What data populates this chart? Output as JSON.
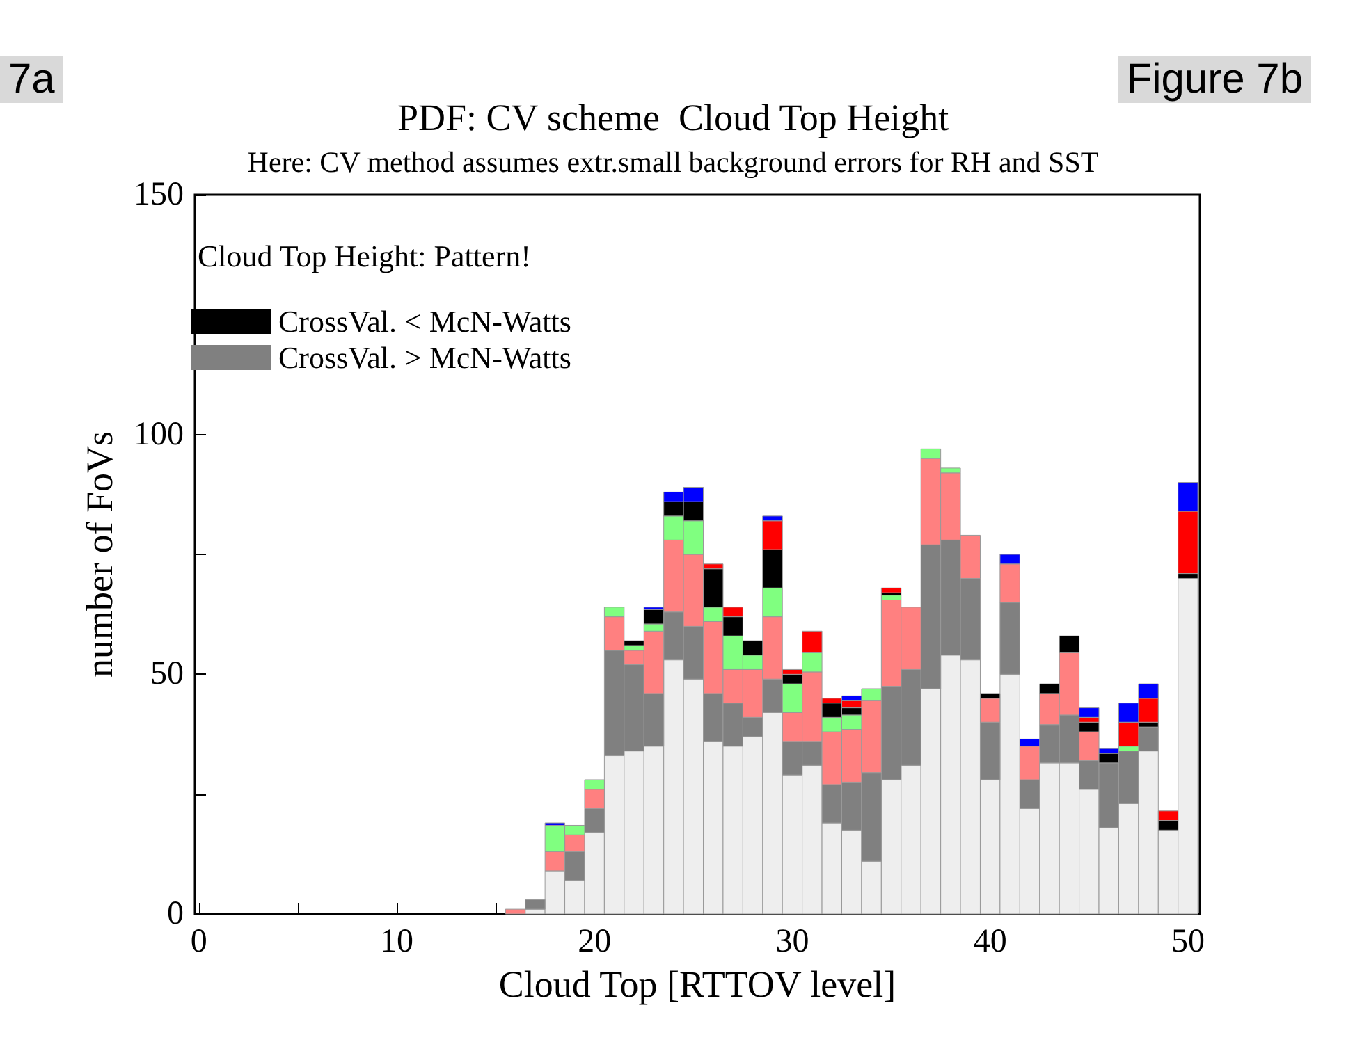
{
  "chart_data": {
    "type": "bar",
    "title": "PDF: CV scheme  Cloud Top Height",
    "subtitle": "Here: CV method assumes extr.small background errors for RH and SST",
    "xlabel": "Cloud Top [RTTOV level]",
    "ylabel": "number of FoVs",
    "legend_title": "Cloud Top Height: Pattern!",
    "annotations": [
      "7a",
      "Figure 7b"
    ],
    "x": [
      16,
      17,
      18,
      19,
      20,
      21,
      22,
      23,
      24,
      25,
      26,
      27,
      28,
      29,
      30,
      31,
      32,
      33,
      34,
      35,
      36,
      37,
      38,
      39,
      40,
      41,
      42,
      43,
      44,
      45,
      46,
      47,
      48,
      49,
      50
    ],
    "stacked": true,
    "series": [
      {
        "color": "#eeeeee",
        "values": [
          0,
          1,
          9,
          7,
          17,
          33,
          34,
          35,
          53,
          49,
          36,
          35,
          37,
          42,
          29,
          31,
          19,
          17.5,
          11,
          28,
          31,
          47,
          54,
          53,
          28,
          50,
          22,
          31.5,
          31.5,
          26,
          18,
          23,
          34,
          17.5,
          70
        ]
      },
      {
        "name": "CrossVal. > McN-Watts",
        "color": "#808080",
        "values": [
          0,
          2,
          0,
          6,
          5,
          22,
          18,
          11,
          10,
          11,
          10,
          9,
          4,
          7,
          7,
          5,
          8,
          10,
          18.5,
          19.5,
          20,
          30,
          24,
          17,
          12,
          15,
          6,
          8,
          10,
          6,
          13.5,
          11,
          5,
          0,
          0
        ]
      },
      {
        "color": "#ff8080",
        "values": [
          1,
          0,
          4,
          3.5,
          4,
          7,
          3,
          13,
          15,
          15,
          15,
          7,
          10,
          13,
          6,
          14.5,
          11,
          11,
          15,
          18,
          13,
          18,
          14,
          9,
          5,
          8,
          7,
          6.5,
          13,
          6,
          0,
          0,
          0,
          0,
          0
        ]
      },
      {
        "color": "#80ff80",
        "values": [
          0,
          0,
          5.5,
          2,
          2,
          2,
          1,
          1.5,
          5,
          7,
          3,
          7,
          3,
          6,
          6,
          4,
          3,
          3,
          2.5,
          1,
          0,
          2,
          1,
          0,
          0,
          0,
          0,
          0,
          0,
          0,
          0,
          1,
          0,
          0,
          0
        ]
      },
      {
        "name": "CrossVal. < McN-Watts",
        "color": "#000000",
        "values": [
          0,
          0,
          0,
          0,
          0,
          0,
          1,
          3,
          3,
          4,
          8,
          4,
          3,
          8,
          2,
          0,
          3,
          1.5,
          0,
          0.5,
          0,
          0,
          0,
          0,
          1,
          0,
          0,
          2,
          3.5,
          2,
          2,
          0,
          1,
          2,
          1
        ]
      },
      {
        "color": "#ff0000",
        "values": [
          0,
          0,
          0,
          0,
          0,
          0,
          0,
          0,
          0,
          0,
          1,
          2,
          0,
          6,
          1,
          4.5,
          1,
          1.5,
          0,
          1,
          0,
          0,
          0,
          0,
          0,
          0,
          0,
          0,
          0,
          1,
          0,
          5,
          5,
          2,
          13
        ]
      },
      {
        "color": "#0000ff",
        "values": [
          0,
          0,
          0.5,
          0,
          0,
          0,
          0,
          0.5,
          2,
          3,
          0,
          0,
          0,
          1,
          0,
          0,
          0,
          1,
          0,
          0,
          0,
          0,
          0,
          0,
          0,
          2,
          1.5,
          0,
          0,
          2,
          1,
          4,
          3,
          0,
          6
        ]
      }
    ],
    "xlim": [
      -0.2,
      50.6
    ],
    "xticks": [
      0,
      {
        "value": 5,
        "label": null
      },
      10,
      {
        "value": 15,
        "label": null
      },
      20,
      {
        "value": 25,
        "label": null
      },
      30,
      {
        "value": 35,
        "label": null
      },
      40,
      {
        "value": 45,
        "label": null
      },
      50
    ],
    "ylim": [
      0,
      150
    ],
    "yticks": [
      0,
      {
        "value": 25,
        "label": null
      },
      50,
      {
        "value": 75,
        "label": null
      },
      100,
      {
        "value": 125,
        "label": null
      },
      150
    ],
    "grid": false,
    "legend": "top left"
  }
}
